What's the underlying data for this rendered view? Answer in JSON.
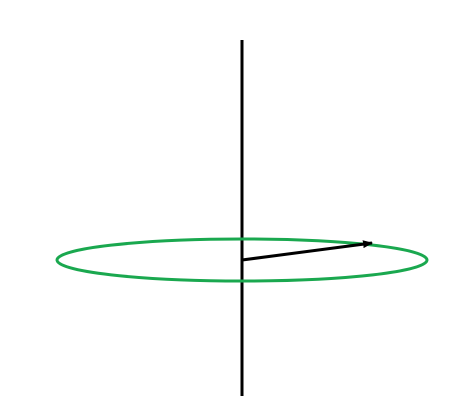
{
  "diagram": {
    "colors": {
      "background": "#ffffff",
      "axis": "#000000",
      "ring": "#1aa84f",
      "vector": "#000000"
    }
  }
}
